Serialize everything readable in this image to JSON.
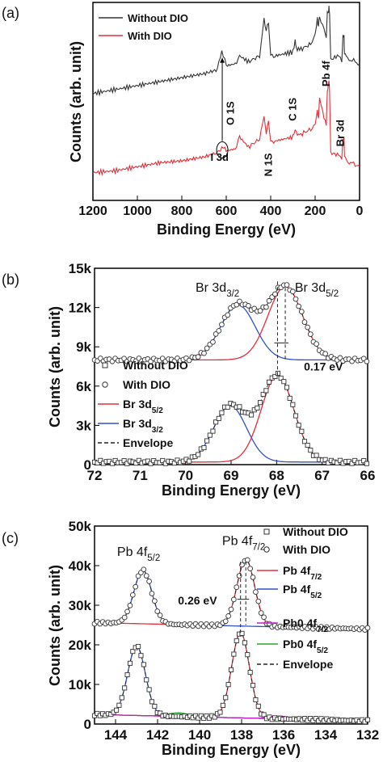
{
  "chart_data": [
    {
      "panel": "(a)",
      "type": "line",
      "xlabel": "Binding Energy (eV)",
      "ylabel": "Counts (arb. unit)",
      "xlim": [
        1200,
        0
      ],
      "ylim": [
        0,
        10
      ],
      "x_ticks": [
        "1200",
        "1000",
        "800",
        "600",
        "400",
        "200",
        "0"
      ],
      "legend": {
        "position": "top-left",
        "entries": [
          {
            "label": "Without DIO",
            "color": "#333333"
          },
          {
            "label": "With DIO",
            "color": "#e0303a"
          }
        ]
      },
      "series": [
        {
          "name": "Without DIO",
          "color": "#333333",
          "x": [
            1200,
            1100,
            1000,
            900,
            800,
            700,
            640,
            620,
            600,
            560,
            540,
            500,
            450,
            430,
            420,
            410,
            400,
            380,
            340,
            300,
            290,
            285,
            270,
            220,
            200,
            190,
            185,
            180,
            160,
            150,
            145,
            140,
            138,
            135,
            130,
            100,
            80,
            75,
            70,
            68,
            60,
            40,
            20,
            0
          ],
          "y": [
            5.4,
            5.6,
            5.8,
            6.0,
            6.2,
            6.4,
            6.6,
            7.6,
            6.8,
            6.9,
            7.3,
            7.0,
            7.3,
            9.1,
            8.6,
            9.0,
            7.3,
            7.3,
            7.4,
            7.5,
            8.1,
            7.7,
            7.6,
            7.9,
            8.4,
            9.2,
            8.8,
            9.3,
            8.6,
            8.3,
            9.4,
            9.6,
            9.8,
            9.4,
            7.1,
            7.3,
            7.1,
            8.2,
            8.4,
            7.4,
            7.2,
            7.1,
            7.0,
            6.9
          ]
        },
        {
          "name": "With DIO",
          "color": "#e0303a",
          "x": [
            1200,
            1100,
            1000,
            900,
            800,
            700,
            640,
            620,
            600,
            560,
            540,
            500,
            450,
            430,
            420,
            410,
            400,
            380,
            340,
            300,
            290,
            285,
            270,
            220,
            200,
            190,
            185,
            180,
            160,
            150,
            145,
            140,
            138,
            135,
            130,
            100,
            80,
            75,
            70,
            68,
            60,
            40,
            20,
            0
          ],
          "y": [
            1.4,
            1.5,
            1.7,
            1.9,
            2.0,
            2.2,
            2.4,
            2.7,
            2.5,
            2.6,
            3.2,
            2.7,
            3.1,
            4.2,
            3.4,
            4.0,
            3.0,
            3.0,
            3.1,
            3.2,
            3.6,
            3.4,
            3.3,
            3.6,
            3.8,
            4.6,
            4.1,
            5.2,
            4.1,
            3.9,
            5.4,
            6.0,
            6.1,
            5.5,
            2.4,
            2.3,
            2.2,
            3.0,
            3.2,
            2.3,
            2.0,
            1.9,
            1.8,
            1.8
          ]
        }
      ],
      "annotations": [
        {
          "text": "I 3d",
          "x": 630,
          "y": 2.0
        },
        {
          "text": "O 1S",
          "x": 565,
          "y": 4.4
        },
        {
          "text": "N 1S",
          "x": 395,
          "y": 1.8
        },
        {
          "text": "C 1S",
          "x": 285,
          "y": 4.6
        },
        {
          "text": "Pb 4f",
          "x": 135,
          "y": 6.4
        },
        {
          "text": "Br 3d",
          "x": 70,
          "y": 3.4
        }
      ]
    },
    {
      "panel": "(b)",
      "type": "line",
      "xlabel": "Binding Energy (eV)",
      "ylabel": "Counts (arb. unit)",
      "xlim": [
        72,
        66
      ],
      "ylim": [
        0,
        15000
      ],
      "x_ticks": [
        "72",
        "71",
        "70",
        "69",
        "68",
        "67",
        "66"
      ],
      "y_ticks": [
        "0",
        "3k",
        "6k",
        "9k",
        "12k",
        "15k"
      ],
      "legend": {
        "position": "bottom-left",
        "entries": [
          {
            "label": "Without DIO",
            "marker": "square"
          },
          {
            "label": "With DIO",
            "marker": "circle"
          },
          {
            "label": "Br 3d5/2",
            "color": "#e0303a"
          },
          {
            "label": "Br 3d3/2",
            "color": "#3050c8"
          },
          {
            "label": "Envelope",
            "style": "dashed"
          }
        ]
      },
      "peaks": {
        "Without DIO": {
          "baseline": 200,
          "br3d52": {
            "center": 67.98,
            "height": 6600,
            "sigma": 0.36
          },
          "br3d32": {
            "center": 69.02,
            "height": 4300,
            "sigma": 0.36
          }
        },
        "With DIO": {
          "baseline": 8000,
          "br3d52": {
            "center": 67.81,
            "height": 5600,
            "sigma": 0.38
          },
          "br3d32": {
            "center": 68.85,
            "height": 4200,
            "sigma": 0.38
          }
        }
      },
      "annotations": [
        {
          "text": "Br 3d3/2",
          "x": 69.3,
          "y": 13200
        },
        {
          "text": "Br 3d5/2",
          "x": 67.6,
          "y": 13200
        },
        {
          "text": "0.17 eV",
          "x": 67.4,
          "y": 7200
        }
      ]
    },
    {
      "panel": "(c)",
      "type": "line",
      "xlabel": "Binding Energy (eV)",
      "ylabel": "Counts (arb. unit)",
      "xlim": [
        145,
        132
      ],
      "ylim": [
        0,
        50000
      ],
      "x_ticks": [
        "144",
        "142",
        "140",
        "138",
        "136",
        "134",
        "132"
      ],
      "y_ticks": [
        "0",
        "10k",
        "20k",
        "30k",
        "40k",
        "50k"
      ],
      "legend": {
        "position": "right",
        "entries": [
          {
            "label": "Without DIO",
            "marker": "square"
          },
          {
            "label": "With DIO",
            "marker": "circle"
          },
          {
            "label": "Pb 4f7/2",
            "color": "#e0303a"
          },
          {
            "label": "Pb 4f5/2",
            "color": "#3050c8"
          },
          {
            "label": "Pb0 4f7/2",
            "color": "#c020c8"
          },
          {
            "label": "Pb0 4f5/2",
            "color": "#30a030"
          },
          {
            "label": "Envelope",
            "style": "dashed"
          }
        ]
      },
      "peaks": {
        "Without DIO": {
          "baseline": 800,
          "pb4f72": {
            "center": 138.05,
            "height": 21500,
            "sigma": 0.42
          },
          "pb4f52": {
            "center": 143.0,
            "height": 17500,
            "sigma": 0.42
          }
        },
        "With DIO": {
          "baseline": 24000,
          "pb4f72": {
            "center": 137.8,
            "height": 16800,
            "sigma": 0.42
          },
          "pb4f52": {
            "center": 142.7,
            "height": 13500,
            "sigma": 0.42
          }
        }
      },
      "annotations": [
        {
          "text": "Pb 4f5/2",
          "x": 142.9,
          "y": 42500
        },
        {
          "text": "Pb 4f7/2",
          "x": 137.9,
          "y": 45200
        },
        {
          "text": "0.26 eV",
          "x": 140.1,
          "y": 30200
        }
      ]
    }
  ]
}
